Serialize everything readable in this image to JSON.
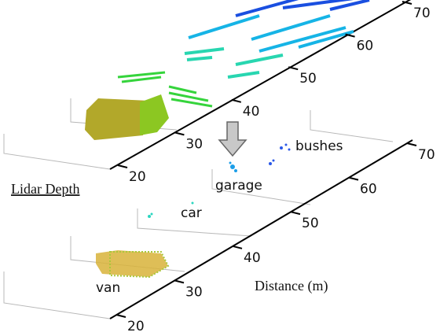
{
  "labels": {
    "lidar_depth": "Lidar Depth",
    "distance": "Distance (m)"
  },
  "top_axis": {
    "ticks": [
      20,
      30,
      40,
      50,
      60,
      70
    ]
  },
  "bottom_axis": {
    "ticks": [
      20,
      30,
      40,
      50,
      60,
      70
    ]
  },
  "objects": [
    {
      "label": "van"
    },
    {
      "label": "car"
    },
    {
      "label": "garage"
    },
    {
      "label": "bushes"
    }
  ]
}
